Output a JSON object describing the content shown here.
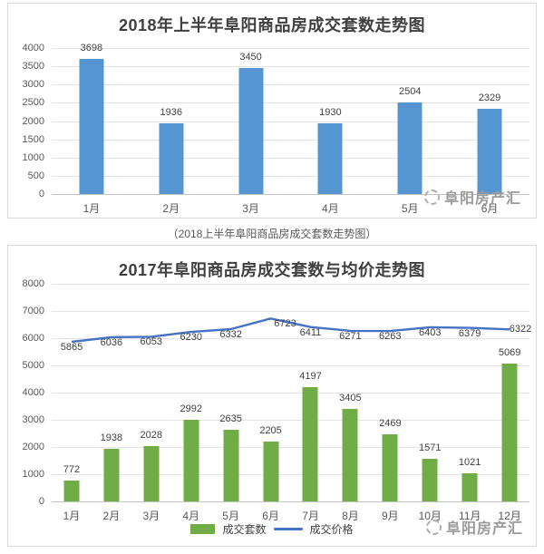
{
  "caption": "（2018上半年阜阳商品房成交套数走势图）",
  "watermark": {
    "text": "阜阳房产汇",
    "icon": "dashed-circle-logo"
  },
  "colors": {
    "bar_blue": "#5596D2",
    "bar_green": "#70AD47",
    "line_blue": "#4472C4",
    "grid": "#E3E3E3",
    "axis_text": "#595959",
    "label_text": "#404040",
    "watermark_text": "#9B9B9B"
  },
  "chart_data": [
    {
      "type": "bar",
      "title": "2018年上半年阜阳商品房成交套数走势图",
      "categories": [
        "1月",
        "2月",
        "3月",
        "4月",
        "5月",
        "6月"
      ],
      "values": [
        3698,
        1936,
        3450,
        1930,
        2504,
        2329
      ],
      "xlabel": "",
      "ylabel": "",
      "ylim": [
        0,
        4000
      ],
      "ytick_step": 500,
      "grid": true,
      "legend": false,
      "bar_color": "#5596D2"
    },
    {
      "type": "bar+line",
      "title": "2017年阜阳商品房成交套数与均价走势图",
      "categories": [
        "1月",
        "2月",
        "3月",
        "4月",
        "5月",
        "6月",
        "7月",
        "8月",
        "9月",
        "10月",
        "11月",
        "12月"
      ],
      "series": [
        {
          "name": "成交套数",
          "type": "bar",
          "color": "#70AD47",
          "values": [
            772,
            1938,
            2028,
            2992,
            2635,
            2205,
            4197,
            3405,
            2469,
            1571,
            1021,
            5069
          ]
        },
        {
          "name": "成交价格",
          "type": "line",
          "color": "#4472C4",
          "values": [
            5865,
            6036,
            6053,
            6230,
            6332,
            6723,
            6411,
            6271,
            6263,
            6403,
            6379,
            6322
          ]
        }
      ],
      "xlabel": "",
      "ylabel": "",
      "ylim": [
        0,
        8000
      ],
      "ytick_step": 1000,
      "grid": true,
      "legend_position": "bottom"
    }
  ]
}
